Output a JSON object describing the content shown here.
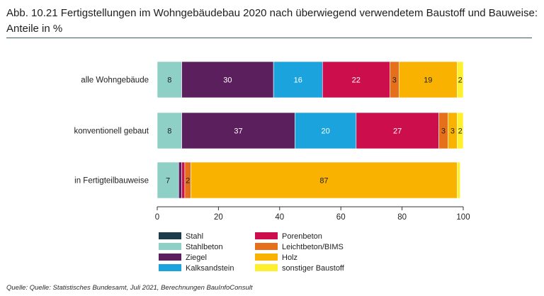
{
  "title": "Abb. 10.21 Fertigstellungen im Wohngebäudebau 2020 nach überwiegend verwendetem Baustoff und Bauweise: Anteile in %",
  "source": "Quelle: Quelle: Statistisches Bundesamt, Juli 2021, Berechnungen BauInfoConsult",
  "chart_data": {
    "type": "bar",
    "orientation": "horizontal",
    "stacked": true,
    "categories": [
      "alle Wohngebäude",
      "konventionell gebaut",
      "in Fertigteilbauweise"
    ],
    "series": [
      {
        "name": "Stahl",
        "color": "#1d3b4a",
        "values": [
          0,
          0,
          0
        ],
        "labels": [
          "",
          "",
          ""
        ]
      },
      {
        "name": "Stahlbeton",
        "color": "#8ecfc6",
        "values": [
          8,
          8,
          7
        ],
        "labels": [
          "8",
          "8",
          "7"
        ]
      },
      {
        "name": "Ziegel",
        "color": "#5c1f5e",
        "values": [
          30,
          37,
          1
        ],
        "labels": [
          "30",
          "37",
          ""
        ]
      },
      {
        "name": "Kalksandstein",
        "color": "#1aa3dc",
        "values": [
          16,
          20,
          0
        ],
        "labels": [
          "16",
          "20",
          ""
        ]
      },
      {
        "name": "Porenbeton",
        "color": "#cc0f4c",
        "values": [
          22,
          27,
          1
        ],
        "labels": [
          "22",
          "27",
          ""
        ]
      },
      {
        "name": "Leichtbeton/BIMS",
        "color": "#e66f1b",
        "values": [
          3,
          3,
          2
        ],
        "labels": [
          "3",
          "3",
          "2"
        ]
      },
      {
        "name": "Holz",
        "color": "#f9b200",
        "values": [
          19,
          3,
          87
        ],
        "labels": [
          "19",
          "3",
          "87"
        ]
      },
      {
        "name": "sonstiger Baustoff",
        "color": "#fff02f",
        "values": [
          2,
          2,
          1
        ],
        "labels": [
          "2",
          "2",
          ""
        ]
      }
    ],
    "xlim": [
      0,
      100
    ],
    "xticks": [
      0,
      20,
      40,
      60,
      80,
      100
    ],
    "xlabel": "",
    "ylabel": "",
    "grid": false,
    "legend_position": "bottom",
    "legend_columns": 2
  }
}
